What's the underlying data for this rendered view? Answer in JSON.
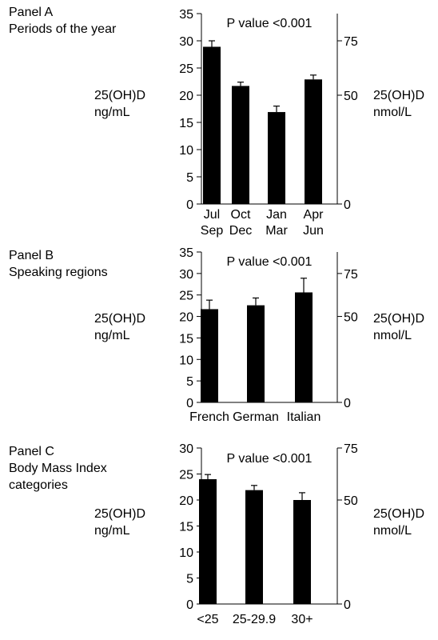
{
  "chart_data": [
    {
      "type": "bar",
      "panel_title": "Panel A",
      "subtitle": "Periods of the year",
      "annotation": "P value <0.001",
      "ylabel_left": [
        "25(OH)D",
        "ng/mL"
      ],
      "ylabel_right": [
        "25(OH)D",
        "nmol/L"
      ],
      "categories": [
        [
          "Jul",
          "Sep"
        ],
        [
          "Oct",
          "Dec"
        ],
        [
          "Jan",
          "Mar"
        ],
        [
          "Apr",
          "Jun"
        ]
      ],
      "values": [
        28.9,
        21.7,
        16.9,
        22.9
      ],
      "error_upper": [
        30.0,
        22.4,
        18.0,
        23.7
      ],
      "ylim": [
        0,
        35
      ],
      "yticks": [
        0,
        5,
        10,
        15,
        20,
        25,
        30,
        35
      ],
      "y2ticks": [
        0,
        50,
        75
      ],
      "grid": false
    },
    {
      "type": "bar",
      "panel_title": "Panel B",
      "subtitle": "Speaking regions",
      "annotation": "P value <0.001",
      "ylabel_left": [
        "25(OH)D",
        "ng/mL"
      ],
      "ylabel_right": [
        "25(OH)D",
        "nmol/L"
      ],
      "categories": [
        [
          "French"
        ],
        [
          "German"
        ],
        [
          "Italian"
        ]
      ],
      "values": [
        21.7,
        22.6,
        25.6
      ],
      "error_upper": [
        23.8,
        24.3,
        28.9
      ],
      "ylim": [
        0,
        35
      ],
      "yticks": [
        0,
        5,
        10,
        15,
        20,
        25,
        30,
        35
      ],
      "y2ticks": [
        0,
        50,
        75
      ],
      "grid": false
    },
    {
      "type": "bar",
      "panel_title": "Panel C",
      "subtitle": "Body Mass Index",
      "subtitle2": "categories",
      "annotation": "P value <0.001",
      "ylabel_left": [
        "25(OH)D",
        "ng/mL"
      ],
      "ylabel_right": [
        "25(OH)D",
        "nmol/L"
      ],
      "categories": [
        [
          "<25"
        ],
        [
          "25-29.9"
        ],
        [
          "30+"
        ]
      ],
      "values": [
        24.0,
        21.9,
        20.0
      ],
      "error_upper": [
        24.9,
        22.8,
        21.4
      ],
      "ylim": [
        0,
        30
      ],
      "yticks": [
        0,
        5,
        10,
        15,
        20,
        25,
        30
      ],
      "y2ticks": [
        0,
        50,
        75
      ],
      "grid": false
    }
  ]
}
